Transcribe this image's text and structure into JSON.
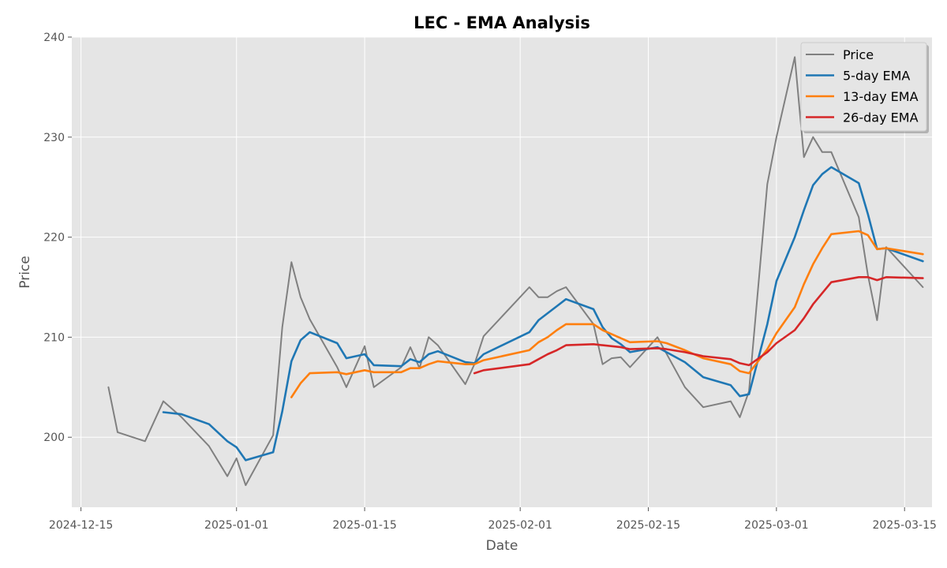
{
  "chart_data": {
    "type": "line",
    "title": "LEC - EMA Analysis",
    "xlabel": "Date",
    "ylabel": "Price",
    "x_range": [
      "2024-12-14",
      "2025-03-18"
    ],
    "ylim": [
      193,
      240
    ],
    "x_ticks": [
      "2024-12-15",
      "2025-01-01",
      "2025-01-15",
      "2025-02-01",
      "2025-02-15",
      "2025-03-01",
      "2025-03-15"
    ],
    "y_ticks": [
      200,
      210,
      220,
      230,
      240
    ],
    "grid": true,
    "legend_position": "top-right",
    "series": [
      {
        "name": "Price",
        "color": "#808080",
        "points": [
          [
            "2024-12-18",
            205.0
          ],
          [
            "2024-12-19",
            200.5
          ],
          [
            "2024-12-22",
            199.6
          ],
          [
            "2024-12-24",
            203.6
          ],
          [
            "2024-12-26",
            202.0
          ],
          [
            "2024-12-29",
            199.1
          ],
          [
            "2024-12-31",
            196.1
          ],
          [
            "2025-01-01",
            197.9
          ],
          [
            "2025-01-02",
            195.2
          ],
          [
            "2025-01-05",
            200.2
          ],
          [
            "2025-01-06",
            211.0
          ],
          [
            "2025-01-07",
            217.5
          ],
          [
            "2025-01-08",
            214.0
          ],
          [
            "2025-01-09",
            211.8
          ],
          [
            "2025-01-12",
            207.0
          ],
          [
            "2025-01-13",
            205.0
          ],
          [
            "2025-01-15",
            209.1
          ],
          [
            "2025-01-16",
            205.0
          ],
          [
            "2025-01-19",
            207.0
          ],
          [
            "2025-01-20",
            209.0
          ],
          [
            "2025-01-21",
            206.9
          ],
          [
            "2025-01-22",
            210.0
          ],
          [
            "2025-01-23",
            209.2
          ],
          [
            "2025-01-26",
            205.3
          ],
          [
            "2025-01-27",
            207.3
          ],
          [
            "2025-01-28",
            210.1
          ],
          [
            "2025-02-02",
            215.0
          ],
          [
            "2025-02-03",
            214.0
          ],
          [
            "2025-02-04",
            214.0
          ],
          [
            "2025-02-05",
            214.6
          ],
          [
            "2025-02-06",
            215.0
          ],
          [
            "2025-02-09",
            211.3
          ],
          [
            "2025-02-10",
            207.3
          ],
          [
            "2025-02-11",
            207.9
          ],
          [
            "2025-02-12",
            208.0
          ],
          [
            "2025-02-13",
            207.0
          ],
          [
            "2025-02-16",
            210.0
          ],
          [
            "2025-02-19",
            205.0
          ],
          [
            "2025-02-21",
            203.0
          ],
          [
            "2025-02-24",
            203.6
          ],
          [
            "2025-02-25",
            202.0
          ],
          [
            "2025-02-26",
            204.6
          ],
          [
            "2025-02-28",
            225.3
          ],
          [
            "2025-03-01",
            230.0
          ],
          [
            "2025-03-03",
            238.0
          ],
          [
            "2025-03-04",
            228.0
          ],
          [
            "2025-03-05",
            230.0
          ],
          [
            "2025-03-06",
            228.5
          ],
          [
            "2025-03-07",
            228.5
          ],
          [
            "2025-03-10",
            222.0
          ],
          [
            "2025-03-11",
            216.2
          ],
          [
            "2025-03-12",
            211.7
          ],
          [
            "2025-03-13",
            219.0
          ],
          [
            "2025-03-17",
            215.0
          ]
        ]
      },
      {
        "name": "5-day EMA",
        "color": "#1f77b4",
        "points": [
          [
            "2024-12-24",
            202.5
          ],
          [
            "2024-12-26",
            202.3
          ],
          [
            "2024-12-29",
            201.3
          ],
          [
            "2024-12-31",
            199.6
          ],
          [
            "2025-01-01",
            199.0
          ],
          [
            "2025-01-02",
            197.7
          ],
          [
            "2025-01-05",
            198.5
          ],
          [
            "2025-01-06",
            202.6
          ],
          [
            "2025-01-07",
            207.6
          ],
          [
            "2025-01-08",
            209.7
          ],
          [
            "2025-01-09",
            210.5
          ],
          [
            "2025-01-12",
            209.4
          ],
          [
            "2025-01-13",
            207.9
          ],
          [
            "2025-01-15",
            208.3
          ],
          [
            "2025-01-16",
            207.2
          ],
          [
            "2025-01-19",
            207.1
          ],
          [
            "2025-01-20",
            207.8
          ],
          [
            "2025-01-21",
            207.5
          ],
          [
            "2025-01-22",
            208.3
          ],
          [
            "2025-01-23",
            208.6
          ],
          [
            "2025-01-26",
            207.5
          ],
          [
            "2025-01-27",
            207.4
          ],
          [
            "2025-01-28",
            208.3
          ],
          [
            "2025-02-02",
            210.5
          ],
          [
            "2025-02-03",
            211.7
          ],
          [
            "2025-02-04",
            212.4
          ],
          [
            "2025-02-05",
            213.1
          ],
          [
            "2025-02-06",
            213.8
          ],
          [
            "2025-02-09",
            212.8
          ],
          [
            "2025-02-10",
            211.0
          ],
          [
            "2025-02-11",
            209.9
          ],
          [
            "2025-02-12",
            209.3
          ],
          [
            "2025-02-13",
            208.5
          ],
          [
            "2025-02-16",
            209.0
          ],
          [
            "2025-02-19",
            207.5
          ],
          [
            "2025-02-21",
            206.0
          ],
          [
            "2025-02-24",
            205.2
          ],
          [
            "2025-02-25",
            204.1
          ],
          [
            "2025-02-26",
            204.3
          ],
          [
            "2025-02-28",
            211.3
          ],
          [
            "2025-03-01",
            215.6
          ],
          [
            "2025-03-03",
            220.0
          ],
          [
            "2025-03-04",
            222.7
          ],
          [
            "2025-03-05",
            225.2
          ],
          [
            "2025-03-06",
            226.3
          ],
          [
            "2025-03-07",
            227.0
          ],
          [
            "2025-03-10",
            225.4
          ],
          [
            "2025-03-11",
            222.3
          ],
          [
            "2025-03-12",
            218.8
          ],
          [
            "2025-03-13",
            218.9
          ],
          [
            "2025-03-17",
            217.6
          ]
        ]
      },
      {
        "name": "13-day EMA",
        "color": "#ff7f0e",
        "points": [
          [
            "2025-01-07",
            204.0
          ],
          [
            "2025-01-08",
            205.4
          ],
          [
            "2025-01-09",
            206.4
          ],
          [
            "2025-01-12",
            206.5
          ],
          [
            "2025-01-13",
            206.3
          ],
          [
            "2025-01-15",
            206.7
          ],
          [
            "2025-01-16",
            206.5
          ],
          [
            "2025-01-19",
            206.5
          ],
          [
            "2025-01-20",
            206.9
          ],
          [
            "2025-01-21",
            206.9
          ],
          [
            "2025-01-22",
            207.3
          ],
          [
            "2025-01-23",
            207.6
          ],
          [
            "2025-01-26",
            207.3
          ],
          [
            "2025-01-27",
            207.3
          ],
          [
            "2025-01-28",
            207.7
          ],
          [
            "2025-02-02",
            208.7
          ],
          [
            "2025-02-03",
            209.5
          ],
          [
            "2025-02-04",
            210.0
          ],
          [
            "2025-02-05",
            210.7
          ],
          [
            "2025-02-06",
            211.3
          ],
          [
            "2025-02-09",
            211.3
          ],
          [
            "2025-02-10",
            210.7
          ],
          [
            "2025-02-11",
            210.3
          ],
          [
            "2025-02-12",
            209.9
          ],
          [
            "2025-02-13",
            209.5
          ],
          [
            "2025-02-16",
            209.6
          ],
          [
            "2025-02-17",
            209.4
          ],
          [
            "2025-02-19",
            208.7
          ],
          [
            "2025-02-21",
            207.9
          ],
          [
            "2025-02-24",
            207.3
          ],
          [
            "2025-02-25",
            206.6
          ],
          [
            "2025-02-26",
            206.4
          ],
          [
            "2025-02-28",
            208.8
          ],
          [
            "2025-03-01",
            210.4
          ],
          [
            "2025-03-03",
            213.0
          ],
          [
            "2025-03-04",
            215.3
          ],
          [
            "2025-03-05",
            217.3
          ],
          [
            "2025-03-06",
            218.9
          ],
          [
            "2025-03-07",
            220.3
          ],
          [
            "2025-03-10",
            220.6
          ],
          [
            "2025-03-11",
            220.2
          ],
          [
            "2025-03-12",
            218.8
          ],
          [
            "2025-03-13",
            218.9
          ],
          [
            "2025-03-17",
            218.3
          ]
        ]
      },
      {
        "name": "26-day EMA",
        "color": "#d62728",
        "points": [
          [
            "2025-01-27",
            206.4
          ],
          [
            "2025-01-28",
            206.7
          ],
          [
            "2025-02-02",
            207.3
          ],
          [
            "2025-02-03",
            207.8
          ],
          [
            "2025-02-04",
            208.3
          ],
          [
            "2025-02-05",
            208.7
          ],
          [
            "2025-02-06",
            209.2
          ],
          [
            "2025-02-09",
            209.3
          ],
          [
            "2025-02-10",
            209.2
          ],
          [
            "2025-02-11",
            209.1
          ],
          [
            "2025-02-12",
            209.0
          ],
          [
            "2025-02-13",
            208.8
          ],
          [
            "2025-02-16",
            208.9
          ],
          [
            "2025-02-17",
            208.8
          ],
          [
            "2025-02-19",
            208.5
          ],
          [
            "2025-02-21",
            208.1
          ],
          [
            "2025-02-24",
            207.8
          ],
          [
            "2025-02-25",
            207.4
          ],
          [
            "2025-02-26",
            207.2
          ],
          [
            "2025-02-28",
            208.5
          ],
          [
            "2025-03-01",
            209.4
          ],
          [
            "2025-03-03",
            210.7
          ],
          [
            "2025-03-04",
            211.9
          ],
          [
            "2025-03-05",
            213.3
          ],
          [
            "2025-03-06",
            214.4
          ],
          [
            "2025-03-07",
            215.5
          ],
          [
            "2025-03-10",
            216.0
          ],
          [
            "2025-03-11",
            216.0
          ],
          [
            "2025-03-12",
            215.7
          ],
          [
            "2025-03-13",
            216.0
          ],
          [
            "2025-03-17",
            215.9
          ]
        ]
      }
    ]
  }
}
